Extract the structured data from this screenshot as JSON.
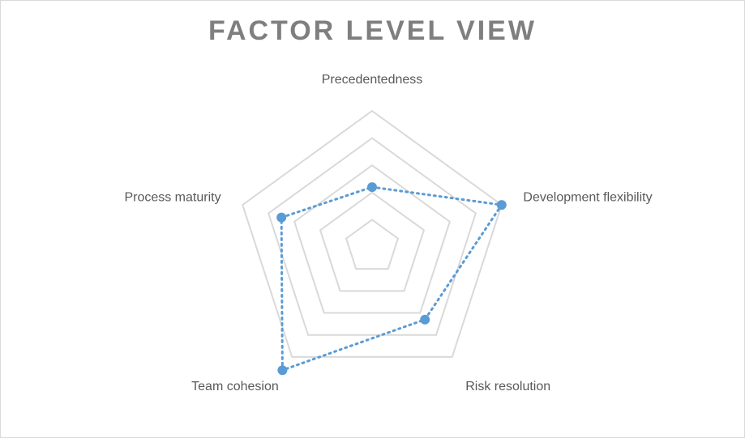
{
  "chart_data": {
    "type": "radar",
    "title": "FACTOR LEVEL VIEW",
    "categories": [
      "Precedentedness",
      "Development flexibility",
      "Risk resolution",
      "Team cohesion",
      "Process maturity"
    ],
    "series": [
      {
        "values": [
          2.2,
          5.0,
          3.3,
          5.6,
          3.5
        ]
      }
    ],
    "rlim": [
      0,
      5
    ],
    "rings": [
      1,
      2,
      3,
      4,
      5
    ],
    "grid": true,
    "legend": "none",
    "colors": {
      "series": "#5b9bd5",
      "grid": "#d9d9d9",
      "title": "#7f7f7f",
      "labels": "#595959"
    }
  }
}
